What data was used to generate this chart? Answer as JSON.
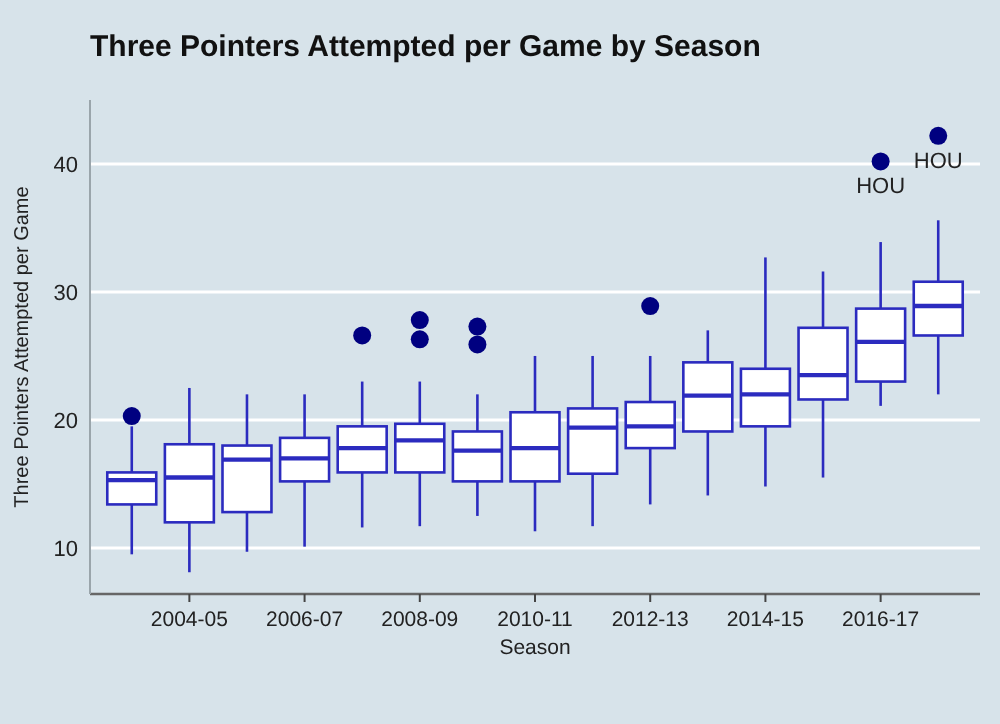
{
  "chart_data": {
    "type": "box",
    "title": "Three Pointers Attempted per Game by Season",
    "xlabel": "Season",
    "ylabel": "Three Pointers Attempted per Game",
    "categories": [
      null,
      "2004-05",
      null,
      "2006-07",
      null,
      "2008-09",
      null,
      "2010-11",
      null,
      "2012-13",
      null,
      "2014-15",
      null,
      "2016-17",
      null
    ],
    "ylim": [
      6.4,
      45
    ],
    "yticks": [
      10,
      20,
      30,
      40
    ],
    "grid": "y",
    "series": [
      {
        "color": "#2b2bbf",
        "boxes": [
          {
            "low": 9.5,
            "q1": 13.4,
            "median": 15.3,
            "q3": 15.9,
            "high": 19.5,
            "outliers": [
              20.3
            ]
          },
          {
            "low": 8.1,
            "q1": 12.0,
            "median": 15.5,
            "q3": 18.1,
            "high": 22.5
          },
          {
            "low": 9.7,
            "q1": 12.8,
            "median": 16.9,
            "q3": 18.0,
            "high": 22.0
          },
          {
            "low": 10.1,
            "q1": 15.2,
            "median": 17.0,
            "q3": 18.6,
            "high": 22.0
          },
          {
            "low": 11.6,
            "q1": 15.9,
            "median": 17.8,
            "q3": 19.5,
            "high": 23.0,
            "outliers": [
              26.6
            ]
          },
          {
            "low": 11.7,
            "q1": 15.9,
            "median": 18.4,
            "q3": 19.7,
            "high": 23.0,
            "outliers": [
              26.3,
              27.8
            ]
          },
          {
            "low": 12.5,
            "q1": 15.2,
            "median": 17.6,
            "q3": 19.1,
            "high": 22.0,
            "outliers": [
              25.9,
              27.3
            ]
          },
          {
            "low": 11.3,
            "q1": 15.2,
            "median": 17.8,
            "q3": 20.6,
            "high": 25.0
          },
          {
            "low": 11.7,
            "q1": 15.8,
            "median": 19.4,
            "q3": 20.9,
            "high": 25.0
          },
          {
            "low": 13.4,
            "q1": 17.8,
            "median": 19.5,
            "q3": 21.4,
            "high": 25.0,
            "outliers": [
              28.9
            ]
          },
          {
            "low": 14.1,
            "q1": 19.1,
            "median": 21.9,
            "q3": 24.5,
            "high": 27.0
          },
          {
            "low": 14.8,
            "q1": 19.5,
            "median": 22.0,
            "q3": 24.0,
            "high": 32.7
          },
          {
            "low": 15.5,
            "q1": 21.6,
            "median": 23.5,
            "q3": 27.2,
            "high": 31.6
          },
          {
            "low": 21.1,
            "q1": 23.0,
            "median": 26.1,
            "q3": 28.7,
            "high": 33.9,
            "outliers": [
              40.2
            ]
          },
          {
            "low": 22.0,
            "q1": 26.6,
            "median": 28.9,
            "q3": 30.8,
            "high": 35.6,
            "outliers": [
              42.2
            ]
          }
        ]
      }
    ],
    "annotations": [
      "HOU",
      "HOU"
    ]
  }
}
